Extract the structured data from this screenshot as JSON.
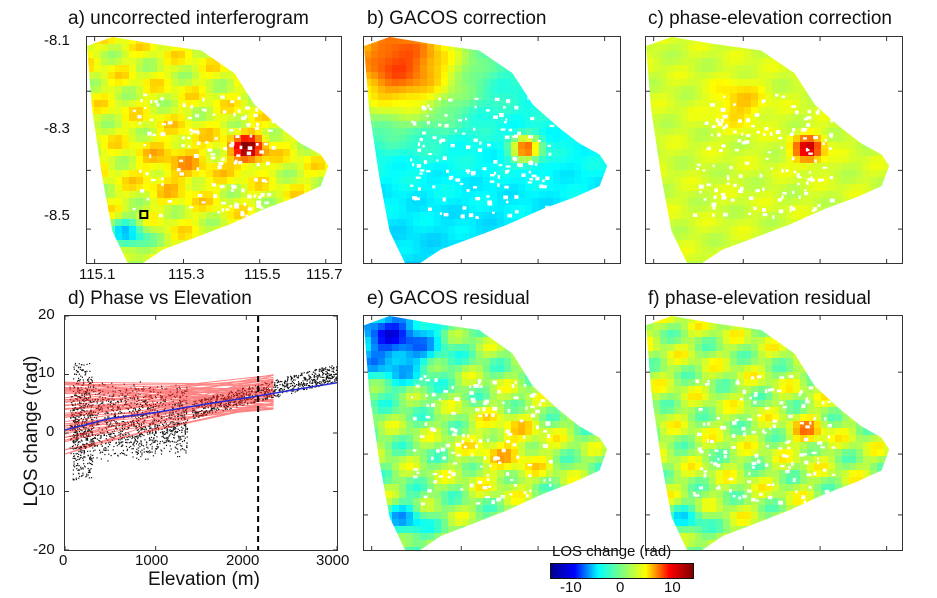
{
  "figure": {
    "panels": [
      {
        "id": "a",
        "title": "a) uncorrected interferogram",
        "variant": "raw"
      },
      {
        "id": "b",
        "title": "b) GACOS correction",
        "variant": "gacos"
      },
      {
        "id": "c",
        "title": "c) phase-elevation correction",
        "variant": "phase"
      },
      {
        "id": "e",
        "title": "e) GACOS residual",
        "variant": "gacos_res"
      },
      {
        "id": "f",
        "title": "f) phase-elevation residual",
        "variant": "phase_res"
      }
    ],
    "map_axes": {
      "lat_ticks": [
        "-8.1",
        "-8.3",
        "-8.5"
      ],
      "lon_ticks": [
        "115.1",
        "115.3",
        "115.5",
        "115.7"
      ]
    },
    "colorbar": {
      "title": "LOS change (rad)",
      "ticks": [
        "-10",
        "0",
        "10"
      ],
      "colormap": [
        "#00008f",
        "#0000ff",
        "#00ffff",
        "#7fff7f",
        "#ffff00",
        "#ff0000",
        "#7f0000"
      ]
    }
  },
  "chart_data": {
    "type": "scatter",
    "title": "d) Phase vs Elevation",
    "xlabel": "Elevation (m)",
    "ylabel": "LOS change (rad)",
    "xlim": [
      0,
      3000
    ],
    "ylim": [
      -20,
      20
    ],
    "x_ticks": [
      "0",
      "1000",
      "2000",
      "3000"
    ],
    "y_ticks": [
      "20",
      "10",
      "0",
      "-10",
      "-20"
    ],
    "vline_x": 2130,
    "trend_line": {
      "x": [
        0,
        500,
        1000,
        1500,
        2000,
        2500,
        3000
      ],
      "y": [
        0.5,
        2.5,
        3.5,
        4.8,
        6.0,
        7.3,
        8.6
      ]
    },
    "colors": {
      "points": "#111111",
      "model": "#ff2020",
      "trend": "#2a2ad4"
    }
  }
}
